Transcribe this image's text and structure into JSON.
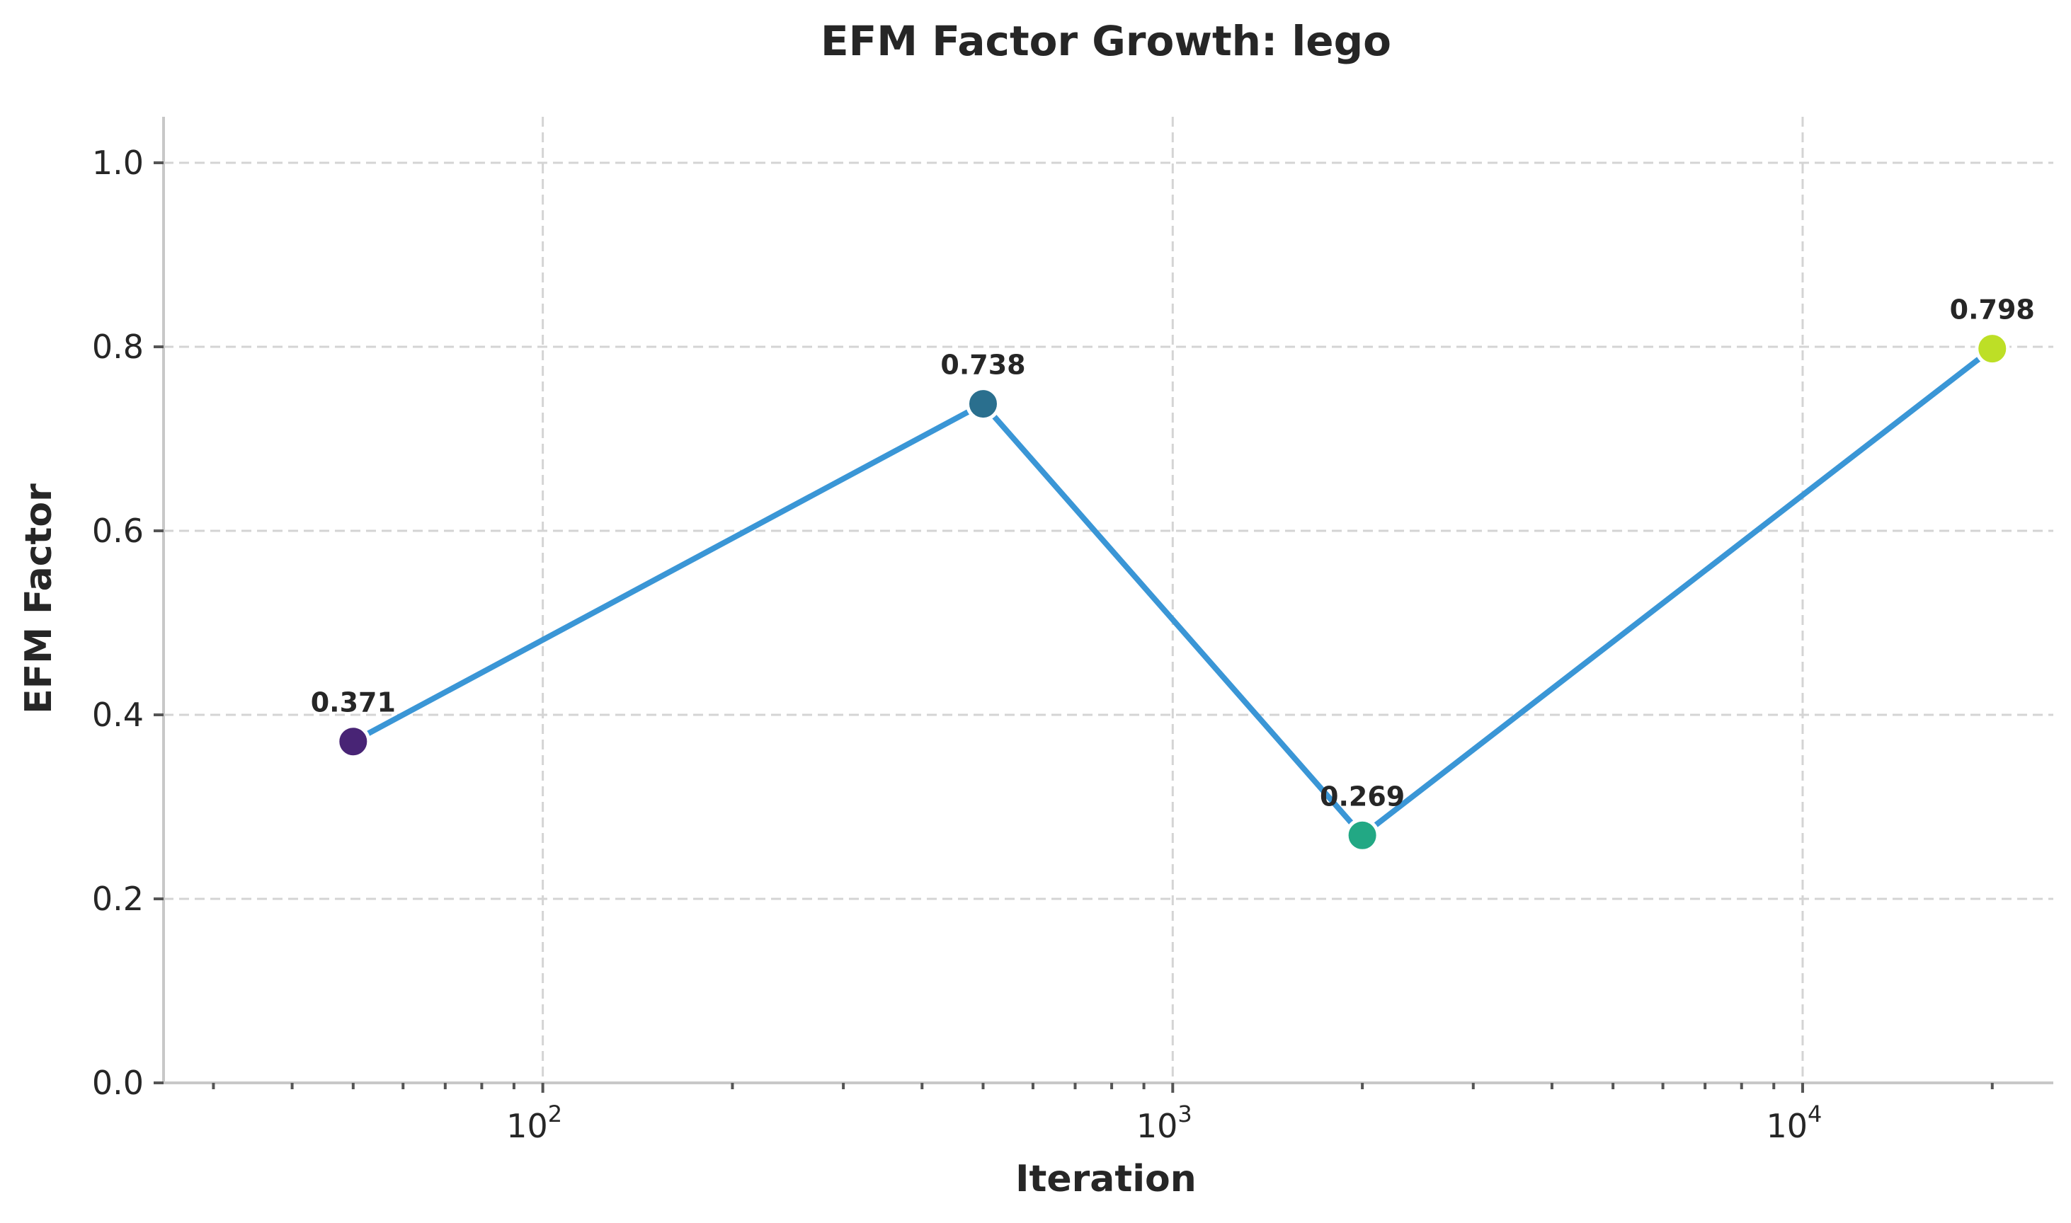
{
  "chart_data": {
    "type": "line",
    "title": "EFM Factor Growth: lego",
    "xlabel": "Iteration",
    "ylabel": "EFM Factor",
    "xscale": "log",
    "xlim": [
      25,
      25000
    ],
    "ylim": [
      0,
      1.05
    ],
    "grid": true,
    "y_ticks": [
      "0.0",
      "0.2",
      "0.4",
      "0.6",
      "0.8",
      "1.0"
    ],
    "x_ticks": [
      {
        "base": "10",
        "exp": "2",
        "value": 100
      },
      {
        "base": "10",
        "exp": "3",
        "value": 1000
      },
      {
        "base": "10",
        "exp": "4",
        "value": 10000
      }
    ],
    "series": [
      {
        "x": [
          50,
          500,
          2000,
          20000
        ],
        "y": [
          0.371,
          0.738,
          0.269,
          0.798
        ],
        "labels": [
          "0.371",
          "0.738",
          "0.269",
          "0.798"
        ],
        "line_color": "#3a96d6",
        "point_colors": [
          "#482475",
          "#2a6f8e",
          "#22a884",
          "#bddf26"
        ]
      }
    ]
  }
}
